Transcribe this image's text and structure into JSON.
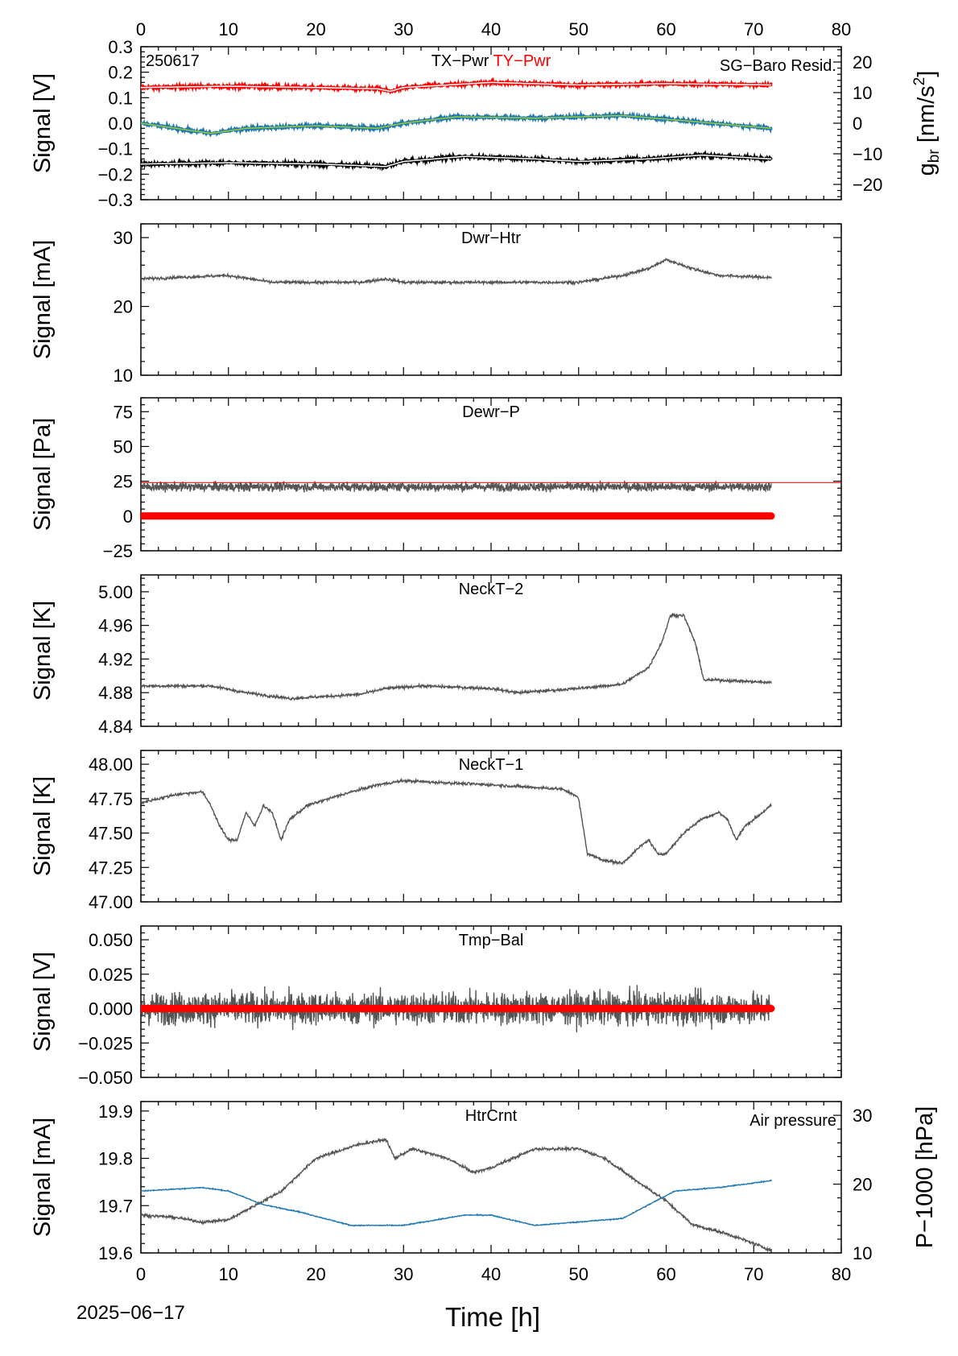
{
  "figure": {
    "date_label": "2025−06−17",
    "x_label": "Time [h]",
    "x_range": [
      0,
      80
    ],
    "x_ticks": [
      "0",
      "10",
      "20",
      "30",
      "40",
      "50",
      "60",
      "70",
      "80"
    ],
    "data_end_hours": 72
  },
  "chart_data": [
    {
      "type": "line",
      "id": "p1",
      "tag": "250617",
      "title_parts": [
        "TX−Pwr",
        "TY−Pwr"
      ],
      "right_title": "SG−Baro Resid.",
      "ylabel": "Signal [V]",
      "ylim": [
        -0.3,
        0.3
      ],
      "yticks": [
        "0.3",
        "0.2",
        "0.1",
        "0.0",
        "−0.1",
        "−0.2",
        "−0.3"
      ],
      "right_axis": {
        "label_main": "g",
        "label_sub": "br",
        "label_rest": " [nm/s",
        "label_sup": "2",
        "label_end": "]",
        "ylim": [
          -25,
          25
        ],
        "ticks": [
          "20",
          "10",
          "0",
          "−10",
          "−20"
        ]
      },
      "series": [
        {
          "color": "#ff0000",
          "keypoints": [
            [
              0,
              0.14
            ],
            [
              10,
              0.145
            ],
            [
              20,
              0.14
            ],
            [
              27,
              0.135
            ],
            [
              28.5,
              0.125
            ],
            [
              30,
              0.14
            ],
            [
              40,
              0.16
            ],
            [
              50,
              0.15
            ],
            [
              60,
              0.155
            ],
            [
              72,
              0.15
            ]
          ]
        },
        {
          "color": "#1f78b4",
          "keypoints": [
            [
              0,
              0.0
            ],
            [
              4,
              -0.02
            ],
            [
              8,
              -0.04
            ],
            [
              12,
              -0.02
            ],
            [
              20,
              -0.01
            ],
            [
              27,
              -0.02
            ],
            [
              30,
              0.0
            ],
            [
              36,
              0.025
            ],
            [
              45,
              0.02
            ],
            [
              55,
              0.03
            ],
            [
              62,
              0.01
            ],
            [
              72,
              -0.02
            ]
          ]
        },
        {
          "color": "#000000",
          "keypoints": [
            [
              0,
              -0.16
            ],
            [
              10,
              -0.155
            ],
            [
              20,
              -0.16
            ],
            [
              28,
              -0.17
            ],
            [
              30,
              -0.15
            ],
            [
              37,
              -0.13
            ],
            [
              45,
              -0.14
            ],
            [
              50,
              -0.15
            ],
            [
              58,
              -0.14
            ],
            [
              64,
              -0.125
            ],
            [
              72,
              -0.14
            ]
          ]
        }
      ],
      "colors": {
        "ty": "#ff0000",
        "right": "#1f78b4"
      }
    },
    {
      "type": "line",
      "id": "p2",
      "title": "Dwr−Htr",
      "ylabel": "Signal [mA]",
      "ylim": [
        10,
        32
      ],
      "yticks": [
        "30",
        "20",
        "10"
      ],
      "series": [
        {
          "color": "#555555",
          "keypoints": [
            [
              0,
              24
            ],
            [
              10,
              24.5
            ],
            [
              15,
              23.5
            ],
            [
              25,
              23.5
            ],
            [
              28,
              24
            ],
            [
              30,
              23.5
            ],
            [
              40,
              23.5
            ],
            [
              50,
              23.5
            ],
            [
              55,
              24.5
            ],
            [
              58,
              25.5
            ],
            [
              60,
              26.8
            ],
            [
              63,
              25.5
            ],
            [
              66,
              24.5
            ],
            [
              72,
              24.2
            ]
          ]
        }
      ]
    },
    {
      "type": "line",
      "id": "p3",
      "title": "Dewr−P",
      "ylabel": "Signal [Pa]",
      "ylim": [
        -25,
        85
      ],
      "yticks": [
        "75",
        "50",
        "25",
        "0",
        "−25"
      ],
      "series": [
        {
          "color": "#555555",
          "keypoints": [
            [
              0,
              21
            ],
            [
              72,
              21
            ]
          ]
        },
        {
          "color": "#ff0000",
          "keypoints": [
            [
              0,
              0
            ],
            [
              72,
              0
            ]
          ]
        }
      ]
    },
    {
      "type": "line",
      "id": "p4",
      "title": "NeckT−2",
      "ylabel": "Signal [K]",
      "ylim": [
        4.84,
        5.02
      ],
      "yticks": [
        "5.00",
        "4.96",
        "4.92",
        "4.88",
        "4.84"
      ],
      "series": [
        {
          "color": "#555555",
          "keypoints": [
            [
              0,
              4.888
            ],
            [
              8,
              4.888
            ],
            [
              12,
              4.88
            ],
            [
              17,
              4.873
            ],
            [
              25,
              4.878
            ],
            [
              28,
              4.885
            ],
            [
              32,
              4.888
            ],
            [
              40,
              4.885
            ],
            [
              43,
              4.88
            ],
            [
              50,
              4.885
            ],
            [
              55,
              4.89
            ],
            [
              58,
              4.91
            ],
            [
              59.5,
              4.94
            ],
            [
              60.5,
              4.972
            ],
            [
              62,
              4.972
            ],
            [
              63.3,
              4.94
            ],
            [
              64.3,
              4.895
            ],
            [
              66,
              4.895
            ],
            [
              72,
              4.892
            ]
          ]
        }
      ]
    },
    {
      "type": "line",
      "id": "p5",
      "title": "NeckT−1",
      "ylabel": "Signal [K]",
      "ylim": [
        47.0,
        48.1
      ],
      "yticks": [
        "48.00",
        "47.75",
        "47.50",
        "47.25",
        "47.00"
      ],
      "series": [
        {
          "color": "#555555",
          "keypoints": [
            [
              0,
              47.72
            ],
            [
              4,
              47.78
            ],
            [
              7,
              47.8
            ],
            [
              8,
              47.7
            ],
            [
              9,
              47.55
            ],
            [
              10,
              47.45
            ],
            [
              11,
              47.45
            ],
            [
              12,
              47.65
            ],
            [
              13,
              47.55
            ],
            [
              14,
              47.7
            ],
            [
              15,
              47.65
            ],
            [
              16,
              47.45
            ],
            [
              17,
              47.6
            ],
            [
              19,
              47.7
            ],
            [
              23,
              47.78
            ],
            [
              27,
              47.85
            ],
            [
              30,
              47.88
            ],
            [
              40,
              47.85
            ],
            [
              48,
              47.82
            ],
            [
              49.5,
              47.78
            ],
            [
              50,
              47.75
            ],
            [
              51,
              47.35
            ],
            [
              53,
              47.3
            ],
            [
              55,
              47.28
            ],
            [
              57,
              47.4
            ],
            [
              58,
              47.45
            ],
            [
              59,
              47.35
            ],
            [
              60,
              47.35
            ],
            [
              62,
              47.5
            ],
            [
              64,
              47.6
            ],
            [
              66,
              47.65
            ],
            [
              67,
              47.6
            ],
            [
              68,
              47.45
            ],
            [
              69,
              47.55
            ],
            [
              72,
              47.7
            ]
          ]
        }
      ]
    },
    {
      "type": "line",
      "id": "p6",
      "title": "Tmp−Bal",
      "ylabel": "Signal [V]",
      "ylim": [
        -0.05,
        0.06
      ],
      "yticks": [
        "0.050",
        "0.025",
        "0.000",
        "−0.025",
        "−0.050"
      ],
      "series": [
        {
          "color": "#555555",
          "keypoints": [
            [
              0,
              0
            ],
            [
              72,
              0
            ]
          ]
        },
        {
          "color": "#ff0000",
          "keypoints": [
            [
              0,
              0
            ],
            [
              72,
              0
            ]
          ]
        }
      ]
    },
    {
      "type": "line",
      "id": "p7",
      "title": "HtrCrnt",
      "right_title": "Air pressure",
      "ylabel": "Signal [mA]",
      "ylim": [
        19.6,
        19.92
      ],
      "yticks": [
        "19.9",
        "19.8",
        "19.7",
        "19.6"
      ],
      "right_axis": {
        "label": "P−1000 [hPa]",
        "ylim": [
          10,
          32
        ],
        "ticks": [
          "30",
          "20",
          "10"
        ]
      },
      "series": [
        {
          "color": "#555555",
          "keypoints": [
            [
              0,
              19.68
            ],
            [
              4,
              19.675
            ],
            [
              7,
              19.665
            ],
            [
              10,
              19.67
            ],
            [
              13,
              19.7
            ],
            [
              16,
              19.73
            ],
            [
              20,
              19.8
            ],
            [
              25,
              19.83
            ],
            [
              28,
              19.84
            ],
            [
              29,
              19.8
            ],
            [
              31,
              19.82
            ],
            [
              35,
              19.8
            ],
            [
              38,
              19.77
            ],
            [
              40,
              19.78
            ],
            [
              45,
              19.82
            ],
            [
              50,
              19.82
            ],
            [
              53,
              19.8
            ],
            [
              56,
              19.76
            ],
            [
              60,
              19.71
            ],
            [
              63,
              19.66
            ],
            [
              67,
              19.64
            ],
            [
              70,
              19.62
            ],
            [
              72,
              19.605
            ]
          ]
        },
        {
          "color": "#1f78b4",
          "axis": "right",
          "keypoints": [
            [
              0,
              19
            ],
            [
              7,
              19.5
            ],
            [
              10,
              19
            ],
            [
              14,
              17
            ],
            [
              18,
              16
            ],
            [
              24,
              14
            ],
            [
              30,
              14
            ],
            [
              37,
              15.5
            ],
            [
              40,
              15.5
            ],
            [
              45,
              14
            ],
            [
              50,
              14.5
            ],
            [
              55,
              15
            ],
            [
              58,
              17
            ],
            [
              61,
              19
            ],
            [
              66,
              19.5
            ],
            [
              72,
              20.5
            ]
          ]
        }
      ],
      "colors": {
        "right": "#1f78b4"
      }
    }
  ]
}
